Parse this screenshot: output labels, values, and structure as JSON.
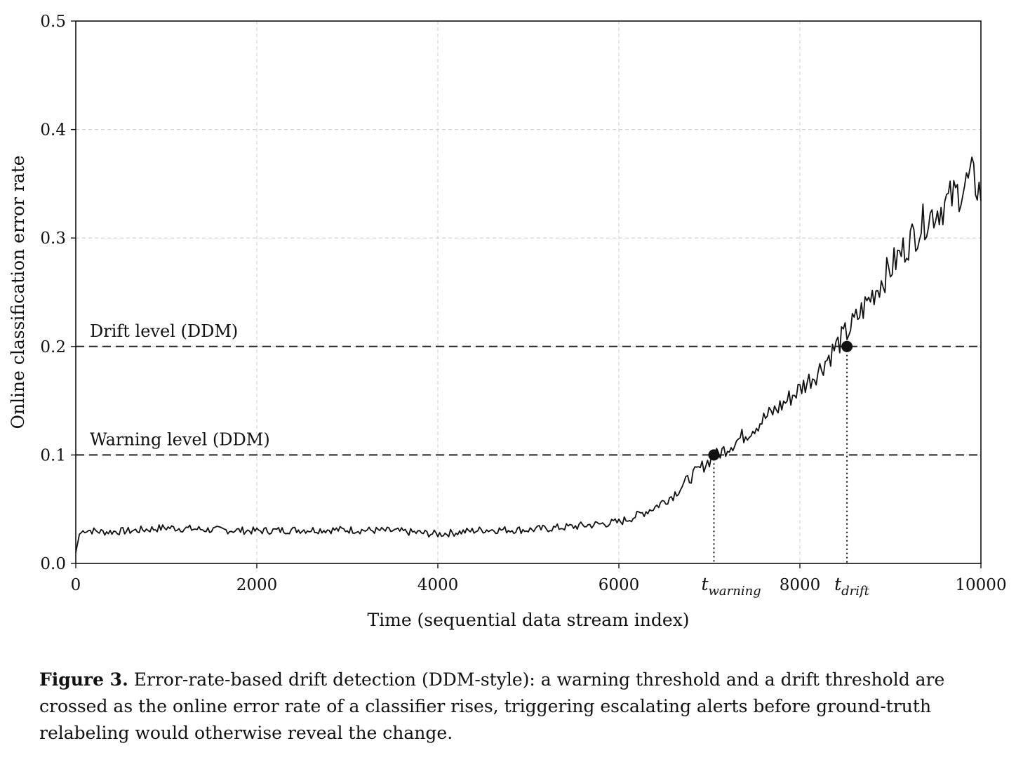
{
  "chart_data": {
    "type": "line",
    "title": "",
    "xlabel": "Time (sequential data stream index)",
    "ylabel": "Online classification error rate",
    "xlim": [
      0,
      10000
    ],
    "ylim": [
      0,
      0.5
    ],
    "xticks": [
      {
        "value": 0,
        "label": "0"
      },
      {
        "value": 2000,
        "label": "2000"
      },
      {
        "value": 4000,
        "label": "4000"
      },
      {
        "value": 6000,
        "label": "6000"
      },
      {
        "value": 8000,
        "label": "8000"
      },
      {
        "value": 10000,
        "label": "10000"
      }
    ],
    "yticks": [
      {
        "value": 0.0,
        "label": "0.0"
      },
      {
        "value": 0.1,
        "label": "0.1"
      },
      {
        "value": 0.2,
        "label": "0.2"
      },
      {
        "value": 0.3,
        "label": "0.3"
      },
      {
        "value": 0.4,
        "label": "0.4"
      },
      {
        "value": 0.5,
        "label": "0.5"
      }
    ],
    "grid": true,
    "series": [
      {
        "values": [
          [
            0,
            0.01
          ],
          [
            40,
            0.027
          ],
          [
            100,
            0.031
          ],
          [
            300,
            0.029
          ],
          [
            600,
            0.03
          ],
          [
            1000,
            0.033
          ],
          [
            1500,
            0.031
          ],
          [
            2000,
            0.03
          ],
          [
            2500,
            0.031
          ],
          [
            3000,
            0.031
          ],
          [
            3500,
            0.03
          ],
          [
            4000,
            0.027
          ],
          [
            4500,
            0.031
          ],
          [
            5000,
            0.031
          ],
          [
            5500,
            0.034
          ],
          [
            6000,
            0.038
          ],
          [
            6200,
            0.044
          ],
          [
            6400,
            0.052
          ],
          [
            6600,
            0.063
          ],
          [
            6800,
            0.08
          ],
          [
            7000,
            0.095
          ],
          [
            7200,
            0.107
          ],
          [
            7400,
            0.119
          ],
          [
            7600,
            0.133
          ],
          [
            7800,
            0.146
          ],
          [
            8000,
            0.161
          ],
          [
            8200,
            0.177
          ],
          [
            8400,
            0.2
          ],
          [
            8600,
            0.222
          ],
          [
            8800,
            0.248
          ],
          [
            9000,
            0.272
          ],
          [
            9200,
            0.296
          ],
          [
            9400,
            0.318
          ],
          [
            9600,
            0.331
          ],
          [
            9800,
            0.346
          ],
          [
            9900,
            0.356
          ],
          [
            10000,
            0.342
          ]
        ]
      }
    ],
    "thresholds": [
      {
        "label": "Drift level (DDM)",
        "y": 0.2,
        "style": "dashed"
      },
      {
        "label": "Warning level (DDM)",
        "y": 0.1,
        "style": "dashed"
      }
    ],
    "markers": [
      {
        "name": "t_warning",
        "label_base": "t",
        "label_sub": "warning",
        "x": 7050,
        "y": 0.1
      },
      {
        "name": "t_drift",
        "label_base": "t",
        "label_sub": "drift",
        "x": 8520,
        "y": 0.2
      }
    ],
    "colors": {
      "line": "#111111",
      "grid": "#cccccc",
      "threshold": "#222222"
    }
  },
  "caption": {
    "label": "Figure 3.",
    "text": " Error-rate-based drift detection (DDM-style): a warning threshold and a drift threshold are crossed as the online error rate of a classifier rises, triggering escalating alerts before ground-truth relabeling would otherwise reveal the change."
  }
}
